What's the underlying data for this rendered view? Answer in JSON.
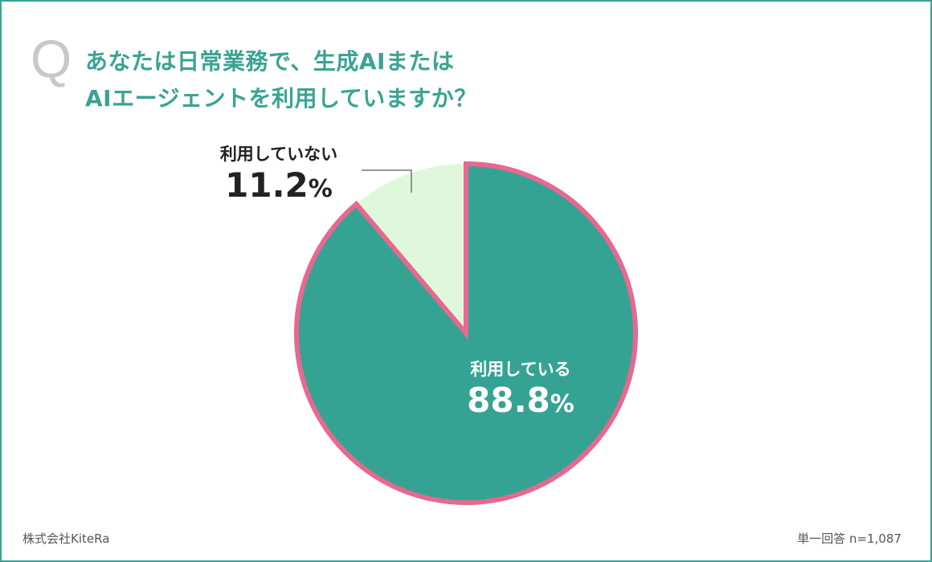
{
  "question": {
    "mark": "Q",
    "line1": "あなたは日常業務で、生成AIまたは",
    "line2": "AIエージェントを利用していますか？"
  },
  "chart_data": {
    "type": "pie",
    "categories": [
      "利用している",
      "利用していない"
    ],
    "values": [
      88.8,
      11.2
    ],
    "value_labels": [
      "88.8",
      "11.2"
    ],
    "unit": "%",
    "colors": [
      "#35a394",
      "#dff8dc"
    ],
    "highlight_border_color": "#e8688f",
    "highlighted_slice": "利用している"
  },
  "footer": {
    "source": "株式会社KiteRa",
    "note": "単一回答 n=1,087"
  }
}
